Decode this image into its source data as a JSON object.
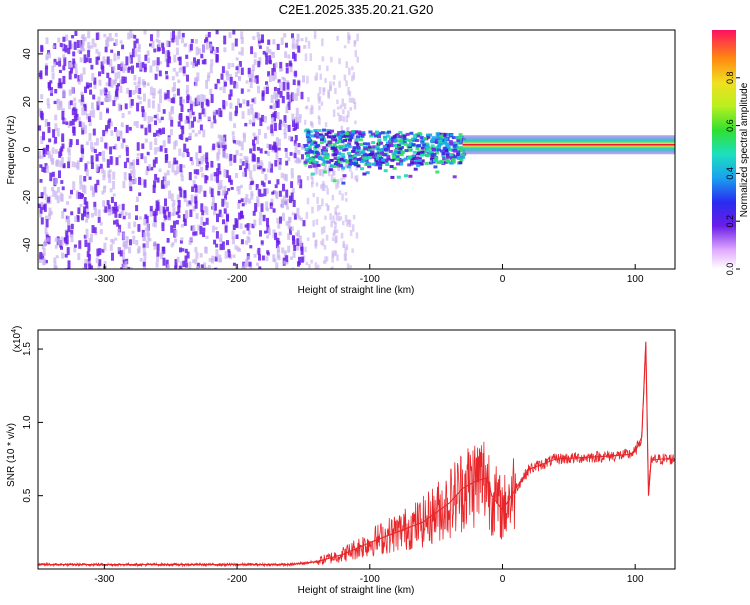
{
  "page_title": "C2E1.2025.335.20.21.G20",
  "colors": {
    "snr_line": "#e8262a",
    "axis": "#000000",
    "spectrogram_noise": "#6a1ee8",
    "spectrogram_faint": "#c9b3f0"
  },
  "chart_data": [
    {
      "type": "heatmap",
      "title": "C2E1.2025.335.20.21.G20",
      "xlabel": "Height of straight line (km)",
      "ylabel": "Frequency (Hz)",
      "xlim": [
        -350,
        130
      ],
      "ylim": [
        -50,
        50
      ],
      "x_ticks": [
        -300,
        -200,
        -100,
        0,
        100
      ],
      "y_ticks": [
        -40,
        -20,
        0,
        20,
        40
      ],
      "colorbar": {
        "label": "Normalized spectral amplitude",
        "range": [
          0,
          1
        ],
        "ticks": [
          0.0,
          0.2,
          0.4,
          0.6,
          0.8
        ]
      },
      "features": [
        {
          "name": "noise region",
          "x_range": [
            -350,
            -150
          ],
          "freq_range": [
            -50,
            50
          ],
          "amplitude": 0.15
        },
        {
          "name": "transition band",
          "x_range": [
            -150,
            -30
          ],
          "freq_range": [
            -15,
            10
          ],
          "amplitude": 0.35
        },
        {
          "name": "signal line",
          "x_range": [
            -30,
            130
          ],
          "freq_center": 2,
          "amplitude": 0.95
        }
      ]
    },
    {
      "type": "line",
      "xlabel": "Height of straight line (km)",
      "ylabel": "SNR (10 * v/v)",
      "y_multiplier_label": "(x10^4)",
      "multiplier_base": "(x10",
      "multiplier_exp": "4",
      "multiplier_close": ")",
      "xlim": [
        -350,
        130
      ],
      "ylim": [
        0,
        1.63
      ],
      "x_ticks": [
        -300,
        -200,
        -100,
        0,
        100
      ],
      "y_ticks": [
        0.5,
        1.0,
        1.5
      ],
      "series": [
        {
          "name": "SNR",
          "x": [
            -350,
            -300,
            -250,
            -200,
            -160,
            -140,
            -120,
            -100,
            -80,
            -60,
            -40,
            -30,
            -20,
            -12,
            -8,
            0,
            10,
            20,
            40,
            60,
            80,
            95,
            100,
            105,
            108,
            110,
            112,
            120,
            130
          ],
          "y": [
            0.03,
            0.03,
            0.03,
            0.03,
            0.03,
            0.05,
            0.1,
            0.18,
            0.25,
            0.32,
            0.45,
            0.55,
            0.6,
            0.62,
            0.5,
            0.4,
            0.55,
            0.68,
            0.75,
            0.76,
            0.77,
            0.78,
            0.8,
            0.9,
            1.55,
            0.5,
            0.74,
            0.75,
            0.75
          ]
        }
      ]
    }
  ]
}
